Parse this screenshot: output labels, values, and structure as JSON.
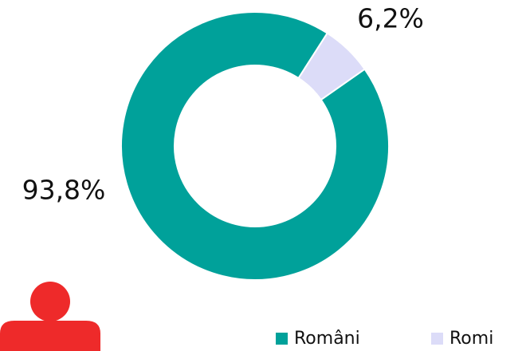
{
  "chart_data": {
    "type": "donut",
    "categories": [
      "Români",
      "Romi"
    ],
    "values": [
      93.8,
      6.2
    ],
    "value_labels": [
      "93,8%",
      "6,2%"
    ],
    "colors": [
      "#00a19a",
      "#dcdcf8"
    ],
    "legend": "bottom-right"
  }
}
